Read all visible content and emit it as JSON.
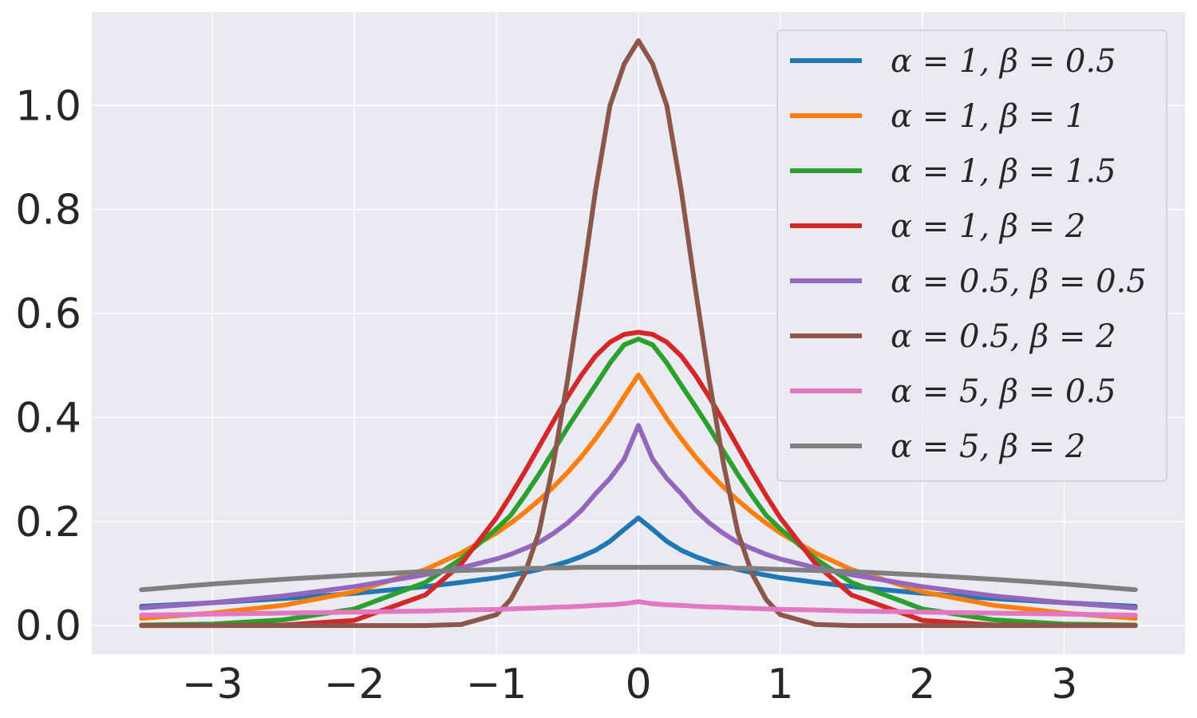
{
  "chart_data": {
    "type": "line",
    "title": "",
    "xlabel": "",
    "ylabel": "",
    "xlim": [
      -3.85,
      3.85
    ],
    "ylim": [
      -0.055,
      1.18
    ],
    "x_ticks": [
      -3,
      -2,
      -1,
      0,
      1,
      2,
      3
    ],
    "x_tick_labels": [
      "−3",
      "−2",
      "−1",
      "0",
      "1",
      "2",
      "3"
    ],
    "y_ticks": [
      0.0,
      0.2,
      0.4,
      0.6,
      0.8,
      1.0
    ],
    "y_tick_labels": [
      "0.0",
      "0.2",
      "0.4",
      "0.6",
      "0.8",
      "1.0"
    ],
    "grid": true,
    "legend_position": "top-right",
    "background_color": "#eaeaf2",
    "x": [
      -3.5,
      -3.0,
      -2.5,
      -2.0,
      -1.5,
      -1.25,
      -1.0,
      -0.9,
      -0.8,
      -0.7,
      -0.6,
      -0.5,
      -0.4,
      -0.3,
      -0.2,
      -0.1,
      0.0,
      0.1,
      0.2,
      0.3,
      0.4,
      0.5,
      0.6,
      0.7,
      0.8,
      0.9,
      1.0,
      1.25,
      1.5,
      2.0,
      2.5,
      3.0,
      3.5
    ],
    "series": [
      {
        "name": "α = 1, β = 0.5",
        "color": "#1f77b4",
        "values": [
          0.037,
          0.044,
          0.052,
          0.062,
          0.075,
          0.083,
          0.092,
          0.097,
          0.102,
          0.108,
          0.115,
          0.123,
          0.133,
          0.145,
          0.162,
          0.185,
          0.207,
          0.185,
          0.162,
          0.145,
          0.133,
          0.123,
          0.115,
          0.108,
          0.102,
          0.097,
          0.092,
          0.083,
          0.075,
          0.062,
          0.052,
          0.044,
          0.037
        ]
      },
      {
        "name": "α = 1, β = 1",
        "color": "#ff7f0e",
        "values": [
          0.014,
          0.024,
          0.039,
          0.065,
          0.108,
          0.139,
          0.178,
          0.197,
          0.218,
          0.241,
          0.266,
          0.294,
          0.325,
          0.36,
          0.398,
          0.44,
          0.482,
          0.44,
          0.398,
          0.36,
          0.325,
          0.294,
          0.266,
          0.241,
          0.218,
          0.197,
          0.178,
          0.139,
          0.108,
          0.065,
          0.039,
          0.024,
          0.014
        ]
      },
      {
        "name": "α = 1, β = 1.5",
        "color": "#2ca02c",
        "values": [
          0.001,
          0.003,
          0.011,
          0.032,
          0.083,
          0.128,
          0.186,
          0.212,
          0.25,
          0.291,
          0.335,
          0.38,
          0.422,
          0.463,
          0.505,
          0.54,
          0.551,
          0.54,
          0.505,
          0.463,
          0.422,
          0.38,
          0.335,
          0.291,
          0.25,
          0.212,
          0.186,
          0.128,
          0.083,
          0.032,
          0.011,
          0.003,
          0.001
        ]
      },
      {
        "name": "α = 1, β = 2",
        "color": "#d62728",
        "values": [
          0.0,
          0.0,
          0.001,
          0.01,
          0.059,
          0.118,
          0.207,
          0.25,
          0.296,
          0.344,
          0.392,
          0.439,
          0.482,
          0.519,
          0.545,
          0.56,
          0.564,
          0.56,
          0.545,
          0.519,
          0.482,
          0.439,
          0.392,
          0.344,
          0.296,
          0.25,
          0.207,
          0.118,
          0.059,
          0.01,
          0.001,
          0.0,
          0.0
        ]
      },
      {
        "name": "α = 0.5, β = 0.5",
        "color": "#9467bd",
        "values": [
          0.034,
          0.044,
          0.057,
          0.075,
          0.098,
          0.111,
          0.128,
          0.137,
          0.148,
          0.16,
          0.177,
          0.197,
          0.222,
          0.254,
          0.283,
          0.32,
          0.385,
          0.32,
          0.283,
          0.254,
          0.222,
          0.197,
          0.177,
          0.16,
          0.148,
          0.137,
          0.128,
          0.111,
          0.098,
          0.075,
          0.057,
          0.044,
          0.034
        ]
      },
      {
        "name": "α = 0.5, β = 2",
        "color": "#8c564b",
        "values": [
          0.0,
          0.0,
          0.0,
          0.0,
          0.0,
          0.002,
          0.021,
          0.05,
          0.1,
          0.18,
          0.31,
          0.47,
          0.65,
          0.84,
          1.0,
          1.08,
          1.125,
          1.08,
          1.0,
          0.84,
          0.65,
          0.47,
          0.31,
          0.18,
          0.1,
          0.05,
          0.021,
          0.002,
          0.0,
          0.0,
          0.0,
          0.0,
          0.0
        ]
      },
      {
        "name": "α = 5, β = 0.5",
        "color": "#e377c2",
        "values": [
          0.02,
          0.022,
          0.024,
          0.026,
          0.028,
          0.03,
          0.031,
          0.032,
          0.033,
          0.034,
          0.035,
          0.036,
          0.037,
          0.039,
          0.04,
          0.042,
          0.046,
          0.042,
          0.04,
          0.039,
          0.037,
          0.036,
          0.035,
          0.034,
          0.033,
          0.032,
          0.031,
          0.03,
          0.028,
          0.026,
          0.024,
          0.022,
          0.02
        ]
      },
      {
        "name": "α = 5, β = 2",
        "color": "#7f7f7f",
        "values": [
          0.069,
          0.08,
          0.089,
          0.097,
          0.104,
          0.106,
          0.108,
          0.109,
          0.11,
          0.11,
          0.111,
          0.111,
          0.112,
          0.112,
          0.112,
          0.112,
          0.112,
          0.112,
          0.112,
          0.112,
          0.112,
          0.111,
          0.111,
          0.11,
          0.11,
          0.109,
          0.108,
          0.106,
          0.104,
          0.097,
          0.089,
          0.08,
          0.069
        ]
      }
    ]
  }
}
